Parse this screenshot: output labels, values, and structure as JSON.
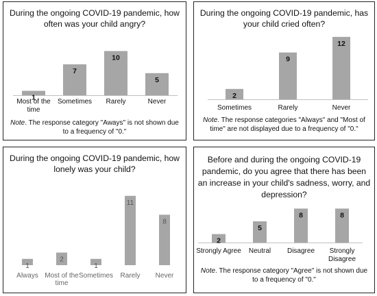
{
  "chart_data": [
    {
      "type": "bar",
      "title": "During the ongoing COVID-19 pandemic, how often was your child angry?",
      "categories": [
        "Most of the time",
        "Sometimes",
        "Rarely",
        "Never"
      ],
      "values": [
        1,
        7,
        10,
        5
      ],
      "note_label": "Note",
      "note": ". The response category \"Aways\" is not shown due to a frequency of \"0.\""
    },
    {
      "type": "bar",
      "title": "During the ongoing COVID-19 pandemic, has your child cried often?",
      "categories": [
        "Sometimes",
        "Rarely",
        "Never"
      ],
      "values": [
        2,
        9,
        12
      ],
      "note_label": "Note",
      "note": ". The response categories \"Always\" and \"Most of time\" are not displayed due to a frequency of \"0.\""
    },
    {
      "type": "bar",
      "title": "During the ongoing COVID-19 pandemic, how lonely was your child?",
      "categories": [
        "Always",
        "Most of the time",
        "Sometimes",
        "Rarely",
        "Never"
      ],
      "values": [
        1,
        2,
        1,
        11,
        8
      ]
    },
    {
      "type": "bar",
      "title": "Before and during the ongoing COVID-19 pandemic, do you agree that there has been an increase in your child's sadness, worry, and depression?",
      "categories": [
        "Strongly Agree",
        "Neutral",
        "Disagree",
        "Strongly Disagree"
      ],
      "values": [
        2,
        5,
        8,
        8
      ],
      "note_label": "Note",
      "note": ". The response category \"Agree\" is not shown due to a frequency of \"0.\""
    }
  ]
}
